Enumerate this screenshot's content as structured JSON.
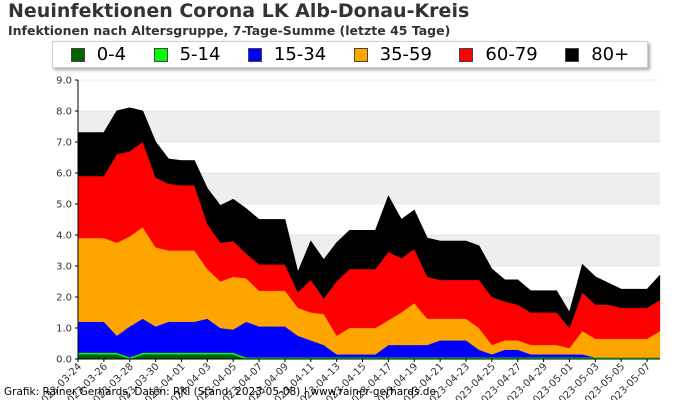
{
  "header": {
    "title": "Neuinfektionen Corona LK Alb-Donau-Kreis",
    "subtitle": "Infektionen nach Altersgruppe, 7-Tage-Summe (letzte 45 Tage)"
  },
  "footer": {
    "credit": "Grafik: Rainer Gerhards, Daten: RKI (Stand: 2023-05-08) | www.rainer-gerhards.de"
  },
  "chart_data": {
    "type": "area",
    "stacked": true,
    "title": "Neuinfektionen Corona LK Alb-Donau-Kreis",
    "subtitle": "Infektionen nach Altersgruppe, 7-Tage-Summe (letzte 45 Tage)",
    "xlabel": "",
    "ylabel": "",
    "ylim": [
      0,
      9
    ],
    "yticks": [
      "0.0",
      "1.0",
      "2.0",
      "3.0",
      "4.0",
      "5.0",
      "6.0",
      "7.0",
      "8.0",
      "9.0"
    ],
    "grid": "horizontal bands",
    "legend_position": "top",
    "x": [
      "2023-03-24",
      "2023-03-25",
      "2023-03-26",
      "2023-03-27",
      "2023-03-28",
      "2023-03-29",
      "2023-03-30",
      "2023-03-31",
      "2023-04-01",
      "2023-04-02",
      "2023-04-03",
      "2023-04-04",
      "2023-04-05",
      "2023-04-06",
      "2023-04-07",
      "2023-04-08",
      "2023-04-09",
      "2023-04-10",
      "2023-04-11",
      "2023-04-12",
      "2023-04-13",
      "2023-04-14",
      "2023-04-15",
      "2023-04-16",
      "2023-04-17",
      "2023-04-18",
      "2023-04-19",
      "2023-04-20",
      "2023-04-21",
      "2023-04-22",
      "2023-04-23",
      "2023-04-24",
      "2023-04-25",
      "2023-04-26",
      "2023-04-27",
      "2023-04-28",
      "2023-04-29",
      "2023-04-30",
      "2023-05-01",
      "2023-05-02",
      "2023-05-03",
      "2023-05-04",
      "2023-05-05",
      "2023-05-06",
      "2023-05-07",
      "2023-05-08"
    ],
    "xtick_labels": [
      "2023-03-24",
      "2023-03-26",
      "2023-03-28",
      "2023-03-30",
      "2023-04-01",
      "2023-04-03",
      "2023-04-05",
      "2023-04-07",
      "2023-04-09",
      "2023-04-11",
      "2023-04-13",
      "2023-04-15",
      "2023-04-17",
      "2023-04-19",
      "2023-04-21",
      "2023-04-23",
      "2023-04-25",
      "2023-04-27",
      "2023-04-29",
      "2023-05-01",
      "2023-05-03",
      "2023-05-05",
      "2023-05-07"
    ],
    "series": [
      {
        "name": "0-4",
        "color": "#006400",
        "values": [
          0.15,
          0.15,
          0.15,
          0.15,
          0.0,
          0.15,
          0.15,
          0.15,
          0.15,
          0.15,
          0.15,
          0.15,
          0.15,
          0.0,
          0.0,
          0.0,
          0.0,
          0.0,
          0.0,
          0.0,
          0.0,
          0.0,
          0.0,
          0.0,
          0.0,
          0.0,
          0.0,
          0.0,
          0.0,
          0.0,
          0.0,
          0.0,
          0.0,
          0.0,
          0.0,
          0.0,
          0.0,
          0.0,
          0.0,
          0.0,
          0.0,
          0.0,
          0.0,
          0.0,
          0.0,
          0.0
        ]
      },
      {
        "name": "5-14",
        "color": "#00ff00",
        "values": [
          0.05,
          0.05,
          0.05,
          0.05,
          0.05,
          0.05,
          0.05,
          0.05,
          0.05,
          0.05,
          0.05,
          0.05,
          0.05,
          0.05,
          0.05,
          0.05,
          0.05,
          0.05,
          0.05,
          0.05,
          0.05,
          0.05,
          0.05,
          0.05,
          0.05,
          0.05,
          0.05,
          0.05,
          0.05,
          0.05,
          0.05,
          0.05,
          0.05,
          0.05,
          0.05,
          0.05,
          0.05,
          0.05,
          0.05,
          0.05,
          0.05,
          0.05,
          0.05,
          0.05,
          0.05,
          0.05
        ]
      },
      {
        "name": "15-34",
        "color": "#0000ff",
        "values": [
          1.0,
          1.0,
          1.0,
          0.55,
          1.0,
          1.1,
          0.85,
          1.0,
          1.0,
          1.0,
          1.1,
          0.8,
          0.75,
          1.15,
          1.0,
          1.0,
          1.0,
          0.7,
          0.55,
          0.4,
          0.1,
          0.1,
          0.1,
          0.1,
          0.4,
          0.4,
          0.4,
          0.4,
          0.55,
          0.55,
          0.55,
          0.25,
          0.1,
          0.25,
          0.25,
          0.1,
          0.1,
          0.1,
          0.1,
          0.1,
          0.0,
          0.0,
          0.0,
          0.0,
          0.0,
          0.0
        ]
      },
      {
        "name": "35-59",
        "color": "#ffa500",
        "values": [
          2.7,
          2.7,
          2.7,
          3.0,
          2.9,
          2.95,
          2.55,
          2.3,
          2.3,
          2.3,
          1.6,
          1.5,
          1.7,
          1.4,
          1.15,
          1.15,
          1.15,
          0.9,
          0.9,
          1.0,
          0.6,
          0.85,
          0.85,
          0.85,
          0.8,
          1.05,
          1.35,
          0.85,
          0.7,
          0.7,
          0.7,
          0.7,
          0.3,
          0.3,
          0.3,
          0.3,
          0.3,
          0.3,
          0.2,
          0.75,
          0.6,
          0.6,
          0.6,
          0.6,
          0.6,
          0.85
        ]
      },
      {
        "name": "60-79",
        "color": "#ff0000",
        "values": [
          2.0,
          2.0,
          2.0,
          2.85,
          2.75,
          2.75,
          2.25,
          2.15,
          2.1,
          2.1,
          1.45,
          1.25,
          1.15,
          0.8,
          0.85,
          0.85,
          0.85,
          0.5,
          1.05,
          0.5,
          1.75,
          1.9,
          1.9,
          1.9,
          2.2,
          1.75,
          1.75,
          1.35,
          1.25,
          1.25,
          1.25,
          1.55,
          1.55,
          1.25,
          1.15,
          1.05,
          1.05,
          1.05,
          0.65,
          1.25,
          1.1,
          1.1,
          1.0,
          1.0,
          1.0,
          1.0
        ]
      },
      {
        "name": "80+",
        "color": "#000000",
        "values": [
          1.4,
          1.4,
          1.4,
          1.4,
          1.4,
          1.0,
          1.15,
          0.8,
          0.8,
          0.8,
          1.15,
          1.2,
          1.35,
          1.45,
          1.45,
          1.45,
          1.45,
          0.65,
          1.25,
          1.25,
          1.25,
          1.25,
          1.25,
          1.25,
          1.8,
          1.25,
          1.25,
          1.25,
          1.25,
          1.25,
          1.25,
          1.1,
          0.9,
          0.7,
          0.8,
          0.7,
          0.7,
          0.7,
          0.5,
          0.9,
          0.9,
          0.7,
          0.6,
          0.6,
          0.6,
          0.8
        ]
      }
    ]
  }
}
